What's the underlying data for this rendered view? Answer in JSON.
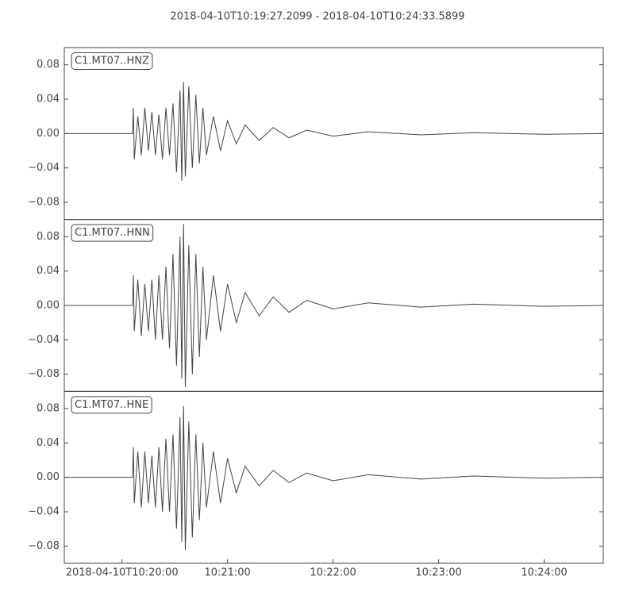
{
  "chart_data": [
    {
      "type": "line",
      "title": "2018-04-10T10:19:27.2099  -  2018-04-10T10:24:33.5899",
      "xlim": [
        "10:19:27.2099",
        "10:24:33.5899"
      ],
      "ylim": [
        -0.1,
        0.1
      ],
      "yticks": [
        0.08,
        0.04,
        {
          "value": 0,
          "label": "0.00"
        },
        {
          "value": -0.04,
          "label": "−0.04"
        },
        {
          "value": -0.08,
          "label": "−0.08"
        }
      ],
      "series": [
        {
          "name": "C1.MT07..HNZ",
          "color": "#444444",
          "x": [
            "10:19:27.2099",
            "10:20:06",
            "10:20:06.5",
            "10:20:07",
            "10:20:09",
            "10:20:11",
            "10:20:13",
            "10:20:15",
            "10:20:17",
            "10:20:19",
            "10:20:21",
            "10:20:23",
            "10:20:25",
            "10:20:27",
            "10:20:29",
            "10:20:31",
            "10:20:33",
            "10:20:34",
            "10:20:35",
            "10:20:36",
            "10:20:38",
            "10:20:40",
            "10:20:42",
            "10:20:44",
            "10:20:46",
            "10:20:48",
            "10:20:52",
            "10:20:56",
            "10:21:00",
            "10:21:05",
            "10:21:10",
            "10:21:18",
            "10:21:26",
            "10:21:35",
            "10:21:45",
            "10:22:00",
            "10:22:20",
            "10:22:50",
            "10:23:20",
            "10:24:00",
            "10:24:33.5899"
          ],
          "values": [
            0,
            0,
            0.03,
            -0.03,
            0.02,
            -0.025,
            0.03,
            -0.02,
            0.025,
            -0.025,
            0.022,
            -0.03,
            0.03,
            -0.025,
            0.035,
            -0.045,
            0.05,
            -0.055,
            0.06,
            -0.05,
            0.055,
            -0.04,
            0.045,
            -0.035,
            0.03,
            -0.025,
            0.02,
            -0.02,
            0.015,
            -0.012,
            0.01,
            -0.008,
            0.007,
            -0.005,
            0.004,
            -0.003,
            0.002,
            -0.0015,
            0.001,
            -0.0008,
            0
          ]
        }
      ]
    },
    {
      "type": "line",
      "xlim": [
        "10:19:27.2099",
        "10:24:33.5899"
      ],
      "ylim": [
        -0.1,
        0.1
      ],
      "yticks": [
        0.08,
        0.04,
        {
          "value": 0,
          "label": "0.00"
        },
        {
          "value": -0.04,
          "label": "−0.04"
        },
        {
          "value": -0.08,
          "label": "−0.08"
        }
      ],
      "series": [
        {
          "name": "C1.MT07..HNN",
          "color": "#444444",
          "x": [
            "10:19:27.2099",
            "10:20:06",
            "10:20:06.5",
            "10:20:07",
            "10:20:09",
            "10:20:11",
            "10:20:13",
            "10:20:15",
            "10:20:17",
            "10:20:19",
            "10:20:21",
            "10:20:23",
            "10:20:25",
            "10:20:27",
            "10:20:29",
            "10:20:31",
            "10:20:33",
            "10:20:34",
            "10:20:35",
            "10:20:36",
            "10:20:38",
            "10:20:40",
            "10:20:42",
            "10:20:44",
            "10:20:46",
            "10:20:48",
            "10:20:52",
            "10:20:56",
            "10:21:00",
            "10:21:05",
            "10:21:10",
            "10:21:18",
            "10:21:26",
            "10:21:35",
            "10:21:45",
            "10:22:00",
            "10:22:20",
            "10:22:50",
            "10:23:20",
            "10:24:00",
            "10:24:33.5899"
          ],
          "values": [
            0,
            0,
            0.035,
            -0.03,
            0.03,
            -0.035,
            0.025,
            -0.03,
            0.03,
            -0.04,
            0.035,
            -0.04,
            0.045,
            -0.05,
            0.06,
            -0.07,
            0.08,
            -0.085,
            0.095,
            -0.095,
            0.07,
            -0.08,
            0.06,
            -0.06,
            0.045,
            -0.04,
            0.035,
            -0.03,
            0.025,
            -0.02,
            0.015,
            -0.012,
            0.01,
            -0.008,
            0.006,
            -0.004,
            0.003,
            -0.002,
            0.0015,
            -0.001,
            0
          ]
        }
      ]
    },
    {
      "type": "line",
      "xlim": [
        "10:19:27.2099",
        "10:24:33.5899"
      ],
      "ylim": [
        -0.1,
        0.1
      ],
      "yticks": [
        0.08,
        0.04,
        {
          "value": 0,
          "label": "0.00"
        },
        {
          "value": -0.04,
          "label": "−0.04"
        },
        {
          "value": -0.08,
          "label": "−0.08"
        }
      ],
      "xticks": [
        {
          "value": "10:20:00",
          "label": "2018-04-10T10:20:00"
        },
        "10:21:00",
        "10:22:00",
        "10:23:00",
        "10:24:00"
      ],
      "series": [
        {
          "name": "C1.MT07..HNE",
          "color": "#444444",
          "x": [
            "10:19:27.2099",
            "10:20:06",
            "10:20:06.5",
            "10:20:07",
            "10:20:09",
            "10:20:11",
            "10:20:13",
            "10:20:15",
            "10:20:17",
            "10:20:19",
            "10:20:21",
            "10:20:23",
            "10:20:25",
            "10:20:27",
            "10:20:29",
            "10:20:31",
            "10:20:33",
            "10:20:34",
            "10:20:35",
            "10:20:36",
            "10:20:38",
            "10:20:40",
            "10:20:42",
            "10:20:44",
            "10:20:46",
            "10:20:48",
            "10:20:52",
            "10:20:56",
            "10:21:00",
            "10:21:05",
            "10:21:10",
            "10:21:18",
            "10:21:26",
            "10:21:35",
            "10:21:45",
            "10:22:00",
            "10:22:20",
            "10:22:50",
            "10:23:20",
            "10:24:00",
            "10:24:33.5899"
          ],
          "values": [
            0,
            0,
            0.035,
            -0.03,
            0.03,
            -0.035,
            0.03,
            -0.03,
            0.025,
            -0.035,
            0.035,
            -0.04,
            0.045,
            -0.04,
            0.05,
            -0.06,
            0.07,
            -0.075,
            0.083,
            -0.085,
            0.065,
            -0.07,
            0.05,
            -0.05,
            0.04,
            -0.035,
            0.03,
            -0.03,
            0.022,
            -0.018,
            0.013,
            -0.01,
            0.008,
            -0.006,
            0.005,
            -0.004,
            0.003,
            -0.002,
            0.0015,
            -0.001,
            0
          ]
        }
      ]
    }
  ]
}
